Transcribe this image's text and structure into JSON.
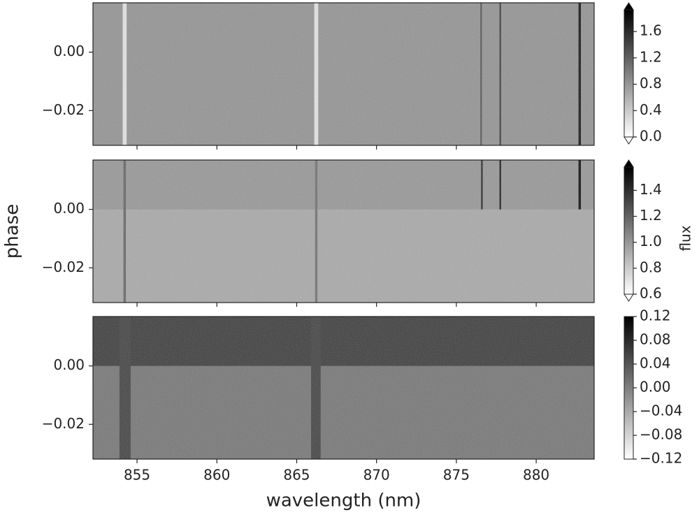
{
  "chart_data": [
    {
      "type": "heatmap",
      "cmap": "gray_r",
      "colorbar_extend": true,
      "xtick_labels": false,
      "xlim": [
        852.24,
        883.63
      ],
      "ylim": [
        -0.0319,
        0.0169
      ],
      "xticks": [
        855,
        860,
        865,
        870,
        875,
        880
      ],
      "yticks": [
        {
          "value": 0,
          "label": "0.00"
        },
        {
          "value": -0.02,
          "label": "−0.02"
        }
      ],
      "clim": [
        0,
        1.93
      ],
      "cticks": [
        {
          "value": 0,
          "label": "0.0"
        },
        {
          "value": 0.4,
          "label": "0.4"
        },
        {
          "value": 0.8,
          "label": "0.8"
        },
        {
          "value": 1.2,
          "label": "1.2"
        },
        {
          "value": 1.6,
          "label": "1.6"
        }
      ],
      "background": 0.82,
      "features": [
        {
          "x": [
            854.1,
            854.35
          ],
          "y": [
            -0.0319,
            0.0169
          ],
          "value": 0.2
        },
        {
          "x": [
            866.1,
            866.35
          ],
          "y": [
            -0.0319,
            0.0169
          ],
          "value": 0.2
        },
        {
          "x": [
            876.5,
            876.6
          ],
          "y": [
            -0.0319,
            0.0169
          ],
          "value": 1.3
        },
        {
          "x": [
            877.7,
            877.8
          ],
          "y": [
            -0.0319,
            0.0169
          ],
          "value": 1.5
        },
        {
          "x": [
            882.65,
            882.8
          ],
          "y": [
            -0.0319,
            0.0169
          ],
          "value": 1.8
        }
      ]
    },
    {
      "type": "heatmap",
      "cmap": "gray_r",
      "colorbar_extend": true,
      "xtick_labels": false,
      "ylabel": "phase",
      "clabel": "flux",
      "xlim": [
        852.24,
        883.63
      ],
      "ylim": [
        -0.0319,
        0.0169
      ],
      "xticks": [
        855,
        860,
        865,
        870,
        875,
        880
      ],
      "yticks": [
        {
          "value": 0,
          "label": "0.00"
        },
        {
          "value": -0.02,
          "label": "−0.02"
        }
      ],
      "clim": [
        0.6,
        1.58
      ],
      "cticks": [
        {
          "value": 0.6,
          "label": "0.6"
        },
        {
          "value": 0.8,
          "label": "0.8"
        },
        {
          "value": 1.0,
          "label": "1.0"
        },
        {
          "value": 1.2,
          "label": "1.2"
        },
        {
          "value": 1.4,
          "label": "1.4"
        }
      ],
      "background": 0.93,
      "features": [
        {
          "x": [
            852.24,
            883.63
          ],
          "y": [
            0,
            0.0169
          ],
          "value": 1.0
        },
        {
          "x": [
            854.15,
            854.3
          ],
          "y": [
            -0.0319,
            0.0169
          ],
          "value": 1.2
        },
        {
          "x": [
            866.15,
            866.3
          ],
          "y": [
            -0.0319,
            0.0169
          ],
          "value": 1.15
        },
        {
          "x": [
            876.55,
            876.65
          ],
          "y": [
            0,
            0.0169
          ],
          "value": 1.45
        },
        {
          "x": [
            877.7,
            877.8
          ],
          "y": [
            0,
            0.0169
          ],
          "value": 1.5
        },
        {
          "x": [
            882.65,
            882.8
          ],
          "y": [
            0,
            0.0169
          ],
          "value": 1.55
        }
      ]
    },
    {
      "type": "heatmap",
      "cmap": "gray_r",
      "colorbar_extend": false,
      "xtick_labels": true,
      "xlabel": "wavelength (nm)",
      "xlim": [
        852.24,
        883.63
      ],
      "ylim": [
        -0.0319,
        0.0169
      ],
      "xticks": [
        855,
        860,
        865,
        870,
        875,
        880
      ],
      "yticks": [
        {
          "value": 0,
          "label": "0.00"
        },
        {
          "value": -0.02,
          "label": "−0.02"
        }
      ],
      "clim": [
        -0.12,
        0.12
      ],
      "cticks": [
        {
          "value": -0.12,
          "label": "−0.12"
        },
        {
          "value": -0.08,
          "label": "−0.08"
        },
        {
          "value": -0.04,
          "label": "−0.04"
        },
        {
          "value": 0,
          "label": "0.00"
        },
        {
          "value": 0.04,
          "label": "0.04"
        },
        {
          "value": 0.08,
          "label": "0.08"
        },
        {
          "value": 0.12,
          "label": "0.12"
        }
      ],
      "background": 0.01,
      "features": [
        {
          "x": [
            852.24,
            883.63
          ],
          "y": [
            0,
            0.0169
          ],
          "value": 0.065
        },
        {
          "x": [
            853.9,
            854.6
          ],
          "y": [
            -0.0319,
            0.0169
          ],
          "value": 0.06
        },
        {
          "x": [
            865.9,
            866.5
          ],
          "y": [
            -0.0319,
            0.0169
          ],
          "value": 0.06
        }
      ]
    }
  ]
}
